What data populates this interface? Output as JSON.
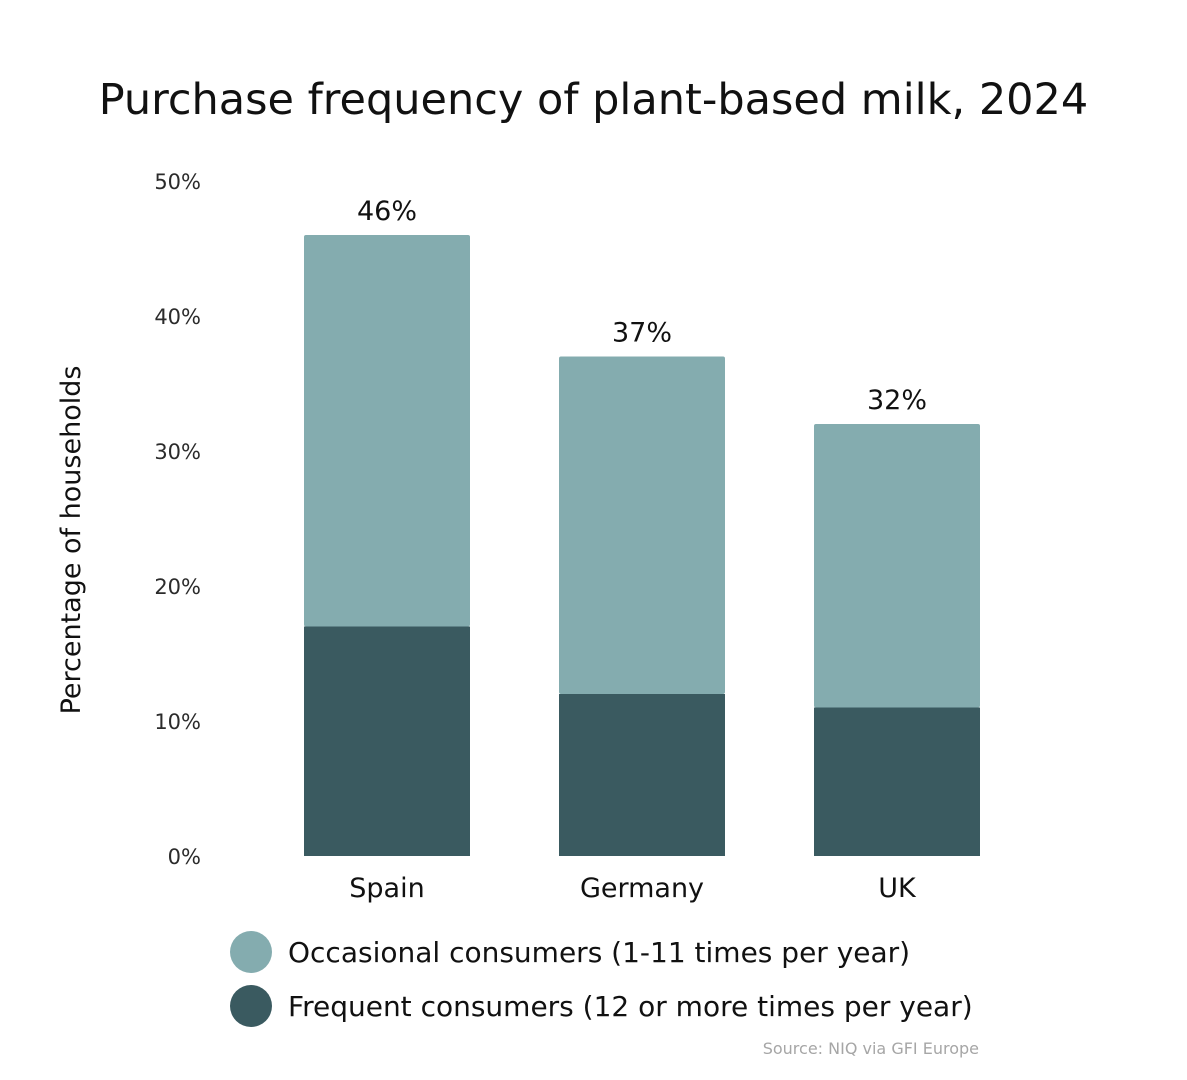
{
  "chart_data": {
    "type": "bar",
    "stacked": true,
    "title": "Purchase frequency of plant-based milk, 2024",
    "xlabel": "",
    "ylabel": "Percentage of households",
    "ylim": [
      0,
      50
    ],
    "yticks": [
      0,
      10,
      20,
      30,
      40,
      50
    ],
    "ytick_labels": [
      "0%",
      "10%",
      "20%",
      "30%",
      "40%",
      "50%"
    ],
    "grid": false,
    "categories": [
      "Spain",
      "Germany",
      "UK"
    ],
    "series": [
      {
        "name": "Frequent consumers (12 or more times per year)",
        "color": "#3a5a60",
        "values": [
          17,
          12,
          11
        ]
      },
      {
        "name": "Occasional consumers (1-11 times per year)",
        "color": "#84acaf",
        "values": [
          29,
          25,
          21
        ]
      }
    ],
    "totals": [
      46,
      37,
      32
    ],
    "total_labels": [
      "46%",
      "37%",
      "32%"
    ],
    "legend": [
      {
        "label": "Occasional consumers (1-11 times per year)",
        "color": "#84acaf"
      },
      {
        "label": "Frequent consumers (12 or more times per year)",
        "color": "#3a5a60"
      }
    ],
    "legend_position": "bottom",
    "source": "Source: NIQ via GFI Europe"
  }
}
